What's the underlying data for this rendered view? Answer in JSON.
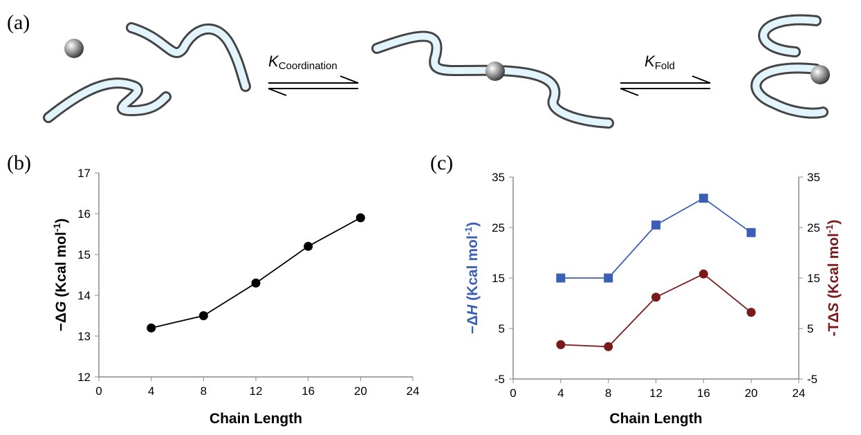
{
  "diagram": {
    "label": "(a)",
    "step1": {
      "symbol": "K",
      "subscript": "Coordination"
    },
    "step2": {
      "symbol": "K",
      "subscript": "Fold"
    }
  },
  "chart_data": [
    {
      "type": "line",
      "panel": "(b)",
      "x": [
        4,
        8,
        12,
        16,
        20
      ],
      "series": [
        {
          "color": "#000000",
          "marker": "circle",
          "values": [
            13.2,
            13.5,
            14.3,
            15.2,
            15.9
          ]
        }
      ],
      "xlim": [
        0,
        24
      ],
      "xticks": [
        0,
        4,
        8,
        12,
        16,
        20,
        24
      ],
      "ylim": [
        12,
        17
      ],
      "yticks": [
        12,
        13,
        14,
        15,
        16,
        17
      ],
      "xlabel": "Chain Length",
      "ylabel": [
        "−Δ",
        "G",
        " (Kcal mol",
        "-1",
        ")"
      ],
      "ylabel_color": "#000000"
    },
    {
      "type": "line",
      "panel": "(c)",
      "x": [
        4,
        8,
        12,
        16,
        20
      ],
      "series": [
        {
          "color": "#3a5fb5",
          "marker": "square",
          "values": [
            15,
            15,
            25.5,
            30.8,
            24
          ]
        },
        {
          "color": "#7a1a1a",
          "marker": "circle",
          "axis": "y2",
          "values": [
            1.8,
            1.4,
            11.2,
            15.8,
            8.2
          ]
        }
      ],
      "xlim": [
        0,
        24
      ],
      "xticks": [
        0,
        4,
        8,
        12,
        16,
        20,
        24
      ],
      "ylim": [
        -5,
        35
      ],
      "yticks": [
        -5,
        5,
        15,
        25,
        35
      ],
      "y2lim": [
        -5,
        35
      ],
      "y2ticks": [
        -5,
        5,
        15,
        25,
        35
      ],
      "xlabel": "Chain Length",
      "ylabel": [
        "−Δ",
        "H",
        " (Kcal mol",
        "-1",
        ")"
      ],
      "ylabel_color": "#3a5fb5",
      "y2label": [
        "-TΔ",
        "S",
        " (Kcal mol",
        "-1",
        ")"
      ],
      "y2label_color": "#7a1a1a"
    }
  ]
}
